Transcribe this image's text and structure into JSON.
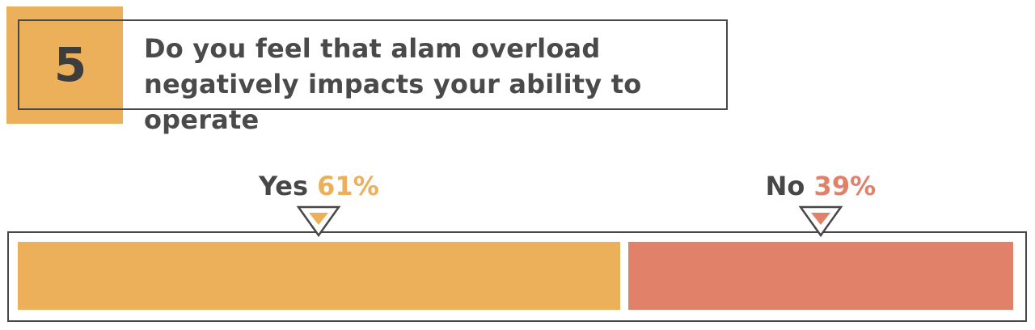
{
  "question": {
    "number": "5",
    "text": "Do you feel that alam overload negatively impacts your ability to operate"
  },
  "chart_data": {
    "type": "bar",
    "categories": [
      "Yes",
      "No"
    ],
    "values": [
      61,
      39
    ],
    "unit": "%",
    "colors": [
      "#ecb05b",
      "#e2816a"
    ],
    "labels": [
      {
        "name": "Yes",
        "value": "61%"
      },
      {
        "name": "No",
        "value": "39%"
      }
    ]
  }
}
